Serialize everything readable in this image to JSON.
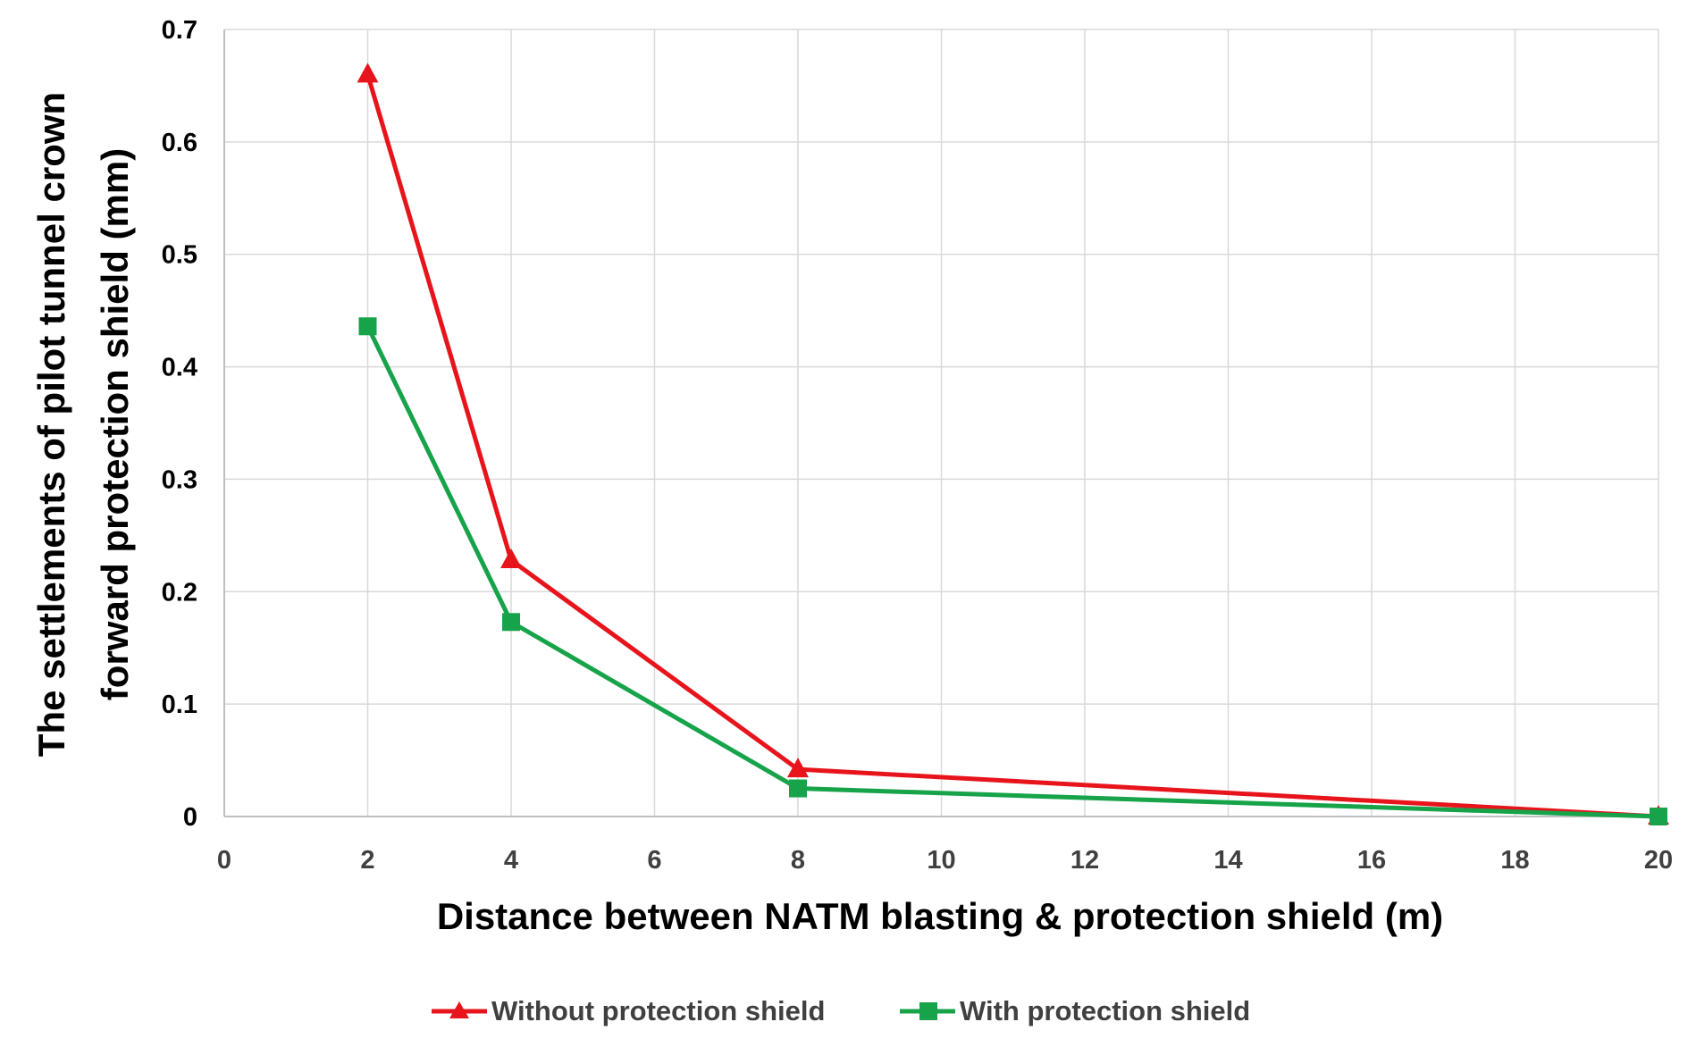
{
  "chart_data": {
    "type": "line",
    "title": "",
    "xlabel": "Distance between NATM blasting & protection shield (m)",
    "ylabel_lines": [
      "The settlements of pilot tunnel crown",
      "forward protection shield (mm)"
    ],
    "xlim": [
      0,
      20
    ],
    "ylim": [
      0,
      0.7
    ],
    "x_ticks": [
      "0",
      "2",
      "4",
      "6",
      "8",
      "10",
      "12",
      "14",
      "16",
      "18",
      "20"
    ],
    "y_ticks": [
      "0",
      "0.1",
      "0.2",
      "0.3",
      "0.4",
      "0.5",
      "0.6",
      "0.7"
    ],
    "x_tick_values": [
      0,
      2,
      4,
      6,
      8,
      10,
      12,
      14,
      16,
      18,
      20
    ],
    "y_tick_values": [
      0,
      0.1,
      0.2,
      0.3,
      0.4,
      0.5,
      0.6,
      0.7
    ],
    "grid": true,
    "legend_position": "bottom",
    "series": [
      {
        "name": "Without protection shield",
        "color": "#e8141c",
        "marker": "triangle",
        "x": [
          2,
          4,
          8,
          20
        ],
        "values": [
          0.66,
          0.228,
          0.042,
          0.0
        ]
      },
      {
        "name": "With protection shield",
        "color": "#16a34a",
        "marker": "square",
        "x": [
          2,
          4,
          8,
          20
        ],
        "values": [
          0.436,
          0.173,
          0.025,
          0.0
        ]
      }
    ]
  }
}
